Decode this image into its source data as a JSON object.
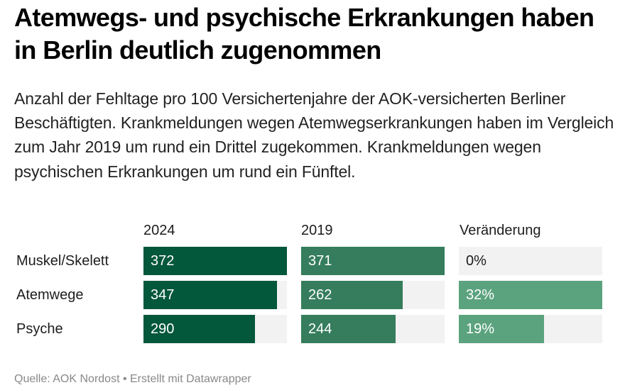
{
  "header": {
    "title": "Atemwegs- und psychische Erkrankungen haben in Berlin deutlich zugenommen",
    "description": "Anzahl der Fehltage pro 100 Versichertenjahre der AOK-versicherten Berliner Beschäftigten. Krankmeldungen wegen Atemwegserkrankungen haben im Vergleich zum Jahr 2019 um rund ein Drittel zugekommen. Krankmeldungen wegen psychischen Erkrankungen um rund ein Fünftel."
  },
  "footer": {
    "source": "Quelle: AOK Nordost • Erstellt mit Datawrapper"
  },
  "colors": {
    "col_2024": "#03573a",
    "col_2019": "#357d5c",
    "col_change": "#5ba37e",
    "track": "#f2f2f2"
  },
  "chart_data": {
    "type": "table",
    "title": "Atemwegs- und psychische Erkrankungen haben in Berlin deutlich zugenommen",
    "columns": [
      "2024",
      "2019",
      "Veränderung"
    ],
    "categories": [
      "Muskel/Skelett",
      "Atemwege",
      "Psyche"
    ],
    "series": [
      {
        "name": "2024",
        "values": [
          372,
          347,
          290
        ],
        "labels": [
          "372",
          "347",
          "290"
        ],
        "max": 372
      },
      {
        "name": "2019",
        "values": [
          371,
          262,
          244
        ],
        "labels": [
          "371",
          "262",
          "244"
        ],
        "max": 371
      },
      {
        "name": "Veränderung",
        "values": [
          0,
          32,
          19
        ],
        "labels": [
          "0%",
          "32%",
          "19%"
        ],
        "max": 32,
        "unit": "%"
      }
    ]
  }
}
